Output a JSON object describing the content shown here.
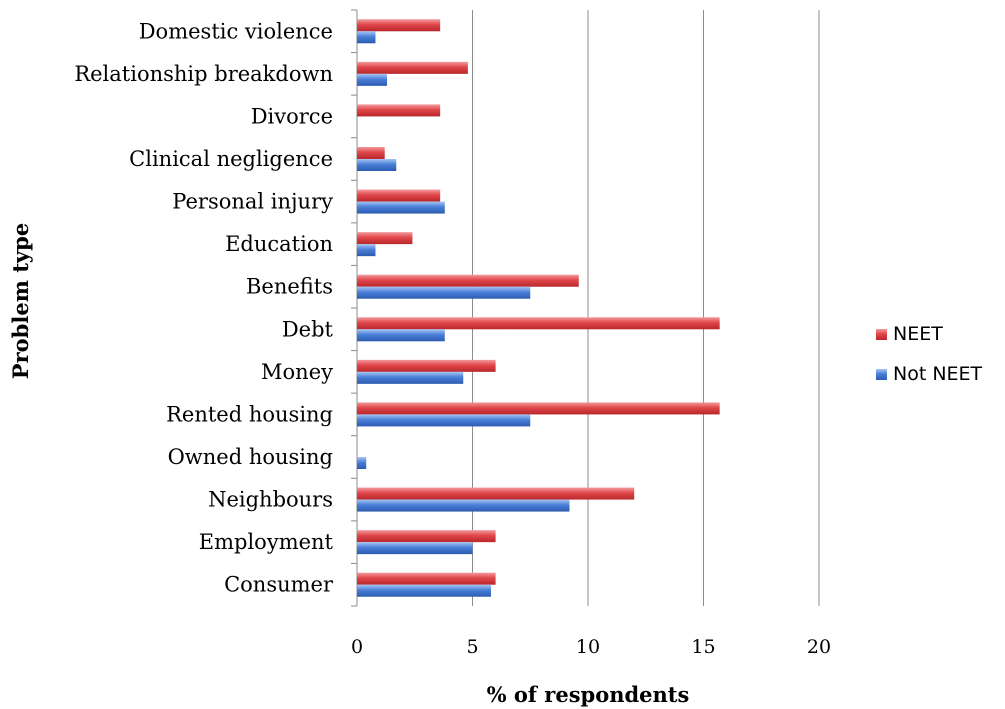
{
  "chart_data": {
    "type": "bar",
    "orientation": "horizontal",
    "title": "",
    "xlabel": "% of respondents",
    "ylabel": "Problem type",
    "xlim": [
      0,
      20
    ],
    "xticks": [
      0,
      5,
      10,
      15,
      20
    ],
    "grid": true,
    "legend_position": "right",
    "categories": [
      "Domestic violence",
      "Relationship breakdown",
      "Divorce",
      "Clinical negligence",
      "Personal injury",
      "Education",
      "Benefits",
      "Debt",
      "Money",
      "Rented housing",
      "Owned housing",
      "Neighbours",
      "Employment",
      "Consumer"
    ],
    "series": [
      {
        "name": "NEET",
        "color": "#e0464a",
        "values": [
          3.6,
          4.8,
          3.6,
          1.2,
          3.6,
          2.4,
          9.6,
          15.7,
          6.0,
          15.7,
          0,
          12.0,
          6.0,
          6.0
        ]
      },
      {
        "name": "Not NEET",
        "color": "#4a7fd8",
        "values": [
          0.8,
          1.3,
          0,
          1.7,
          3.8,
          0.8,
          7.5,
          3.8,
          4.6,
          7.5,
          0.4,
          9.2,
          5.0,
          5.8
        ]
      }
    ]
  }
}
